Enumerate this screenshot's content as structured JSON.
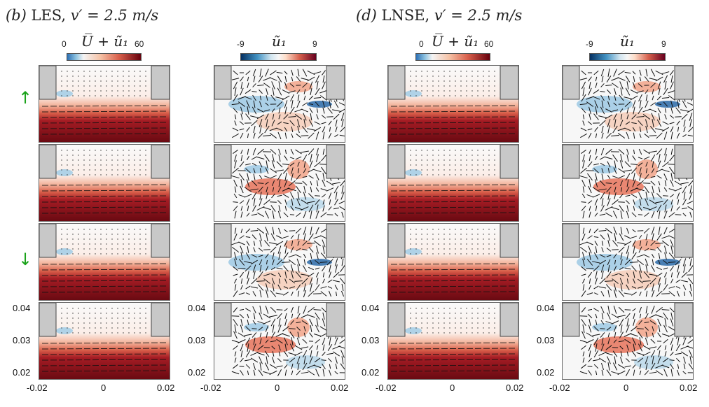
{
  "columns": [
    {
      "title_letter": "(b)",
      "title_text": " LES, ",
      "title_velocity": "v′ = 2.5 m/s",
      "type": "mean"
    },
    {
      "type": "fluct"
    },
    {
      "title_letter": "(d)",
      "title_text": " LNSE, ",
      "title_velocity": "v′ = 2.5 m/s",
      "type": "mean"
    },
    {
      "type": "fluct"
    }
  ],
  "colorbars": {
    "mean": {
      "label": "U̅ + ũ₁",
      "min": "0",
      "max": "60"
    },
    "fluct": {
      "label": "ũ₁",
      "min": "-9",
      "max": "9"
    }
  },
  "phase_arrows": {
    "up": "↑",
    "down": "↓"
  },
  "axes": {
    "y_ticks": [
      "0.04",
      "0.03",
      "0.02"
    ],
    "x_ticks": [
      "-0.02",
      "0",
      "0.02"
    ]
  },
  "colors": {
    "solid": "#c8c8c8",
    "arrow_green": "#1aa31a"
  }
}
